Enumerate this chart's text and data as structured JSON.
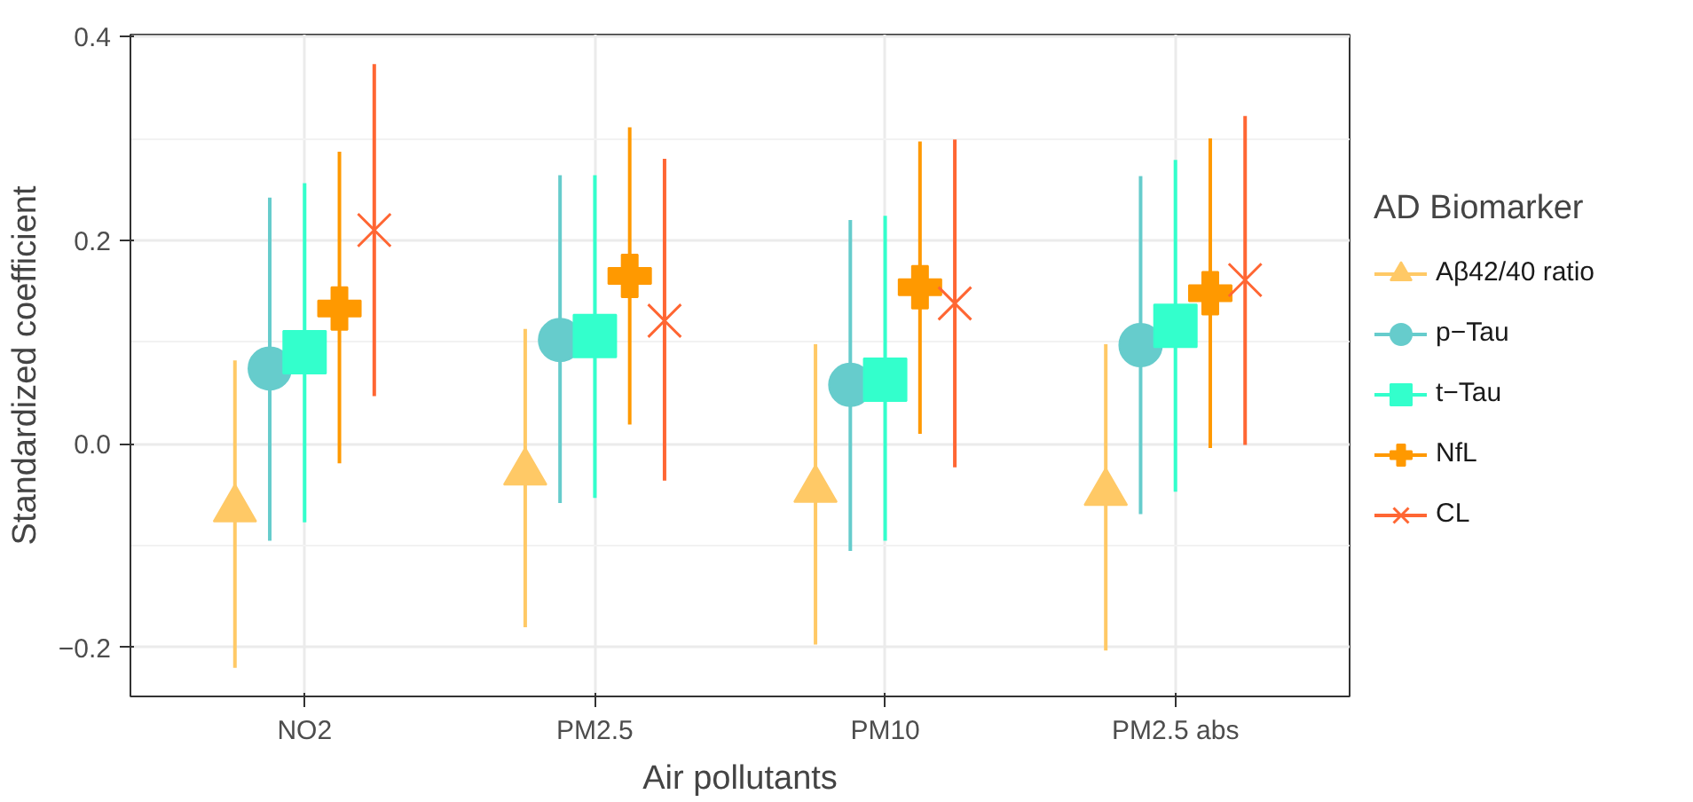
{
  "chart_data": {
    "type": "scatter",
    "xlabel": "Air pollutants",
    "ylabel": "Standardized coefficient",
    "legend_title": "AD Biomarker",
    "categories": [
      "NO2",
      "PM2.5",
      "PM10",
      "PM2.5 abs"
    ],
    "ylim": [
      -0.248,
      0.402
    ],
    "yticks": [
      {
        "value": -0.2,
        "label": "−0.2"
      },
      {
        "value": 0.0,
        "label": "0.0"
      },
      {
        "value": 0.2,
        "label": "0.2"
      },
      {
        "value": 0.4,
        "label": "0.4"
      }
    ],
    "grid": true,
    "legend": "right",
    "series": [
      {
        "name": "Aβ42/40 ratio",
        "color": "#ffc966",
        "marker": "triangle",
        "values": [
          -0.064,
          -0.028,
          -0.045,
          -0.048
        ],
        "errors": [
          [
            -0.22,
            0.082
          ],
          [
            -0.18,
            0.113
          ],
          [
            -0.197,
            0.098
          ],
          [
            -0.203,
            0.098
          ]
        ]
      },
      {
        "name": "p−Tau",
        "color": "#66cccc",
        "marker": "circle",
        "values": [
          0.074,
          0.102,
          0.058,
          0.097
        ],
        "errors": [
          [
            -0.095,
            0.242
          ],
          [
            -0.058,
            0.264
          ],
          [
            -0.105,
            0.22
          ],
          [
            -0.069,
            0.263
          ]
        ]
      },
      {
        "name": "t−Tau",
        "color": "#33ffcc",
        "marker": "square",
        "values": [
          0.09,
          0.106,
          0.063,
          0.116
        ],
        "errors": [
          [
            -0.077,
            0.256
          ],
          [
            -0.053,
            0.264
          ],
          [
            -0.095,
            0.224
          ],
          [
            -0.047,
            0.279
          ]
        ]
      },
      {
        "name": "NfL",
        "color": "#ff9900",
        "marker": "cross",
        "values": [
          0.133,
          0.165,
          0.154,
          0.148
        ],
        "errors": [
          [
            -0.019,
            0.287
          ],
          [
            0.019,
            0.311
          ],
          [
            0.01,
            0.297
          ],
          [
            -0.004,
            0.3
          ]
        ]
      },
      {
        "name": "CL",
        "color": "#ff6633",
        "marker": "x",
        "values": [
          0.21,
          0.121,
          0.138,
          0.161
        ],
        "errors": [
          [
            0.047,
            0.373
          ],
          [
            -0.036,
            0.28
          ],
          [
            -0.023,
            0.299
          ],
          [
            -0.001,
            0.322
          ]
        ]
      }
    ]
  }
}
